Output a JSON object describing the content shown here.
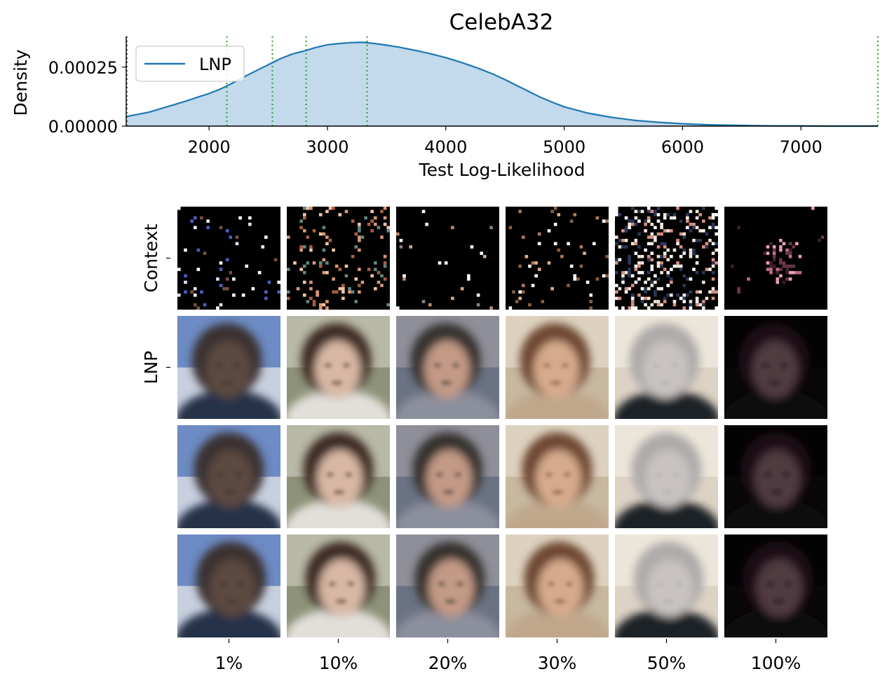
{
  "chart_data": [
    {
      "type": "area",
      "title": "CelebA32",
      "xlabel": "Test Log-Likelihood",
      "ylabel": "Density",
      "xlim": [
        1300,
        7650
      ],
      "ylim": [
        0,
        0.00038
      ],
      "xticks": [
        2000,
        3000,
        4000,
        5000,
        6000,
        7000
      ],
      "xtick_labels": [
        "2000",
        "3000",
        "4000",
        "5000",
        "6000",
        "7000"
      ],
      "yticks": [
        0,
        0.00025
      ],
      "ytick_labels": [
        "0.00000",
        "0.00025"
      ],
      "grid": false,
      "legend_position": "top-left",
      "series": [
        {
          "name": "LNP",
          "color": "#1f77b4",
          "fill_color": "#c3d9ec",
          "x": [
            1300,
            1400,
            1500,
            1600,
            1700,
            1800,
            1900,
            2000,
            2100,
            2200,
            2300,
            2400,
            2500,
            2600,
            2700,
            2800,
            2900,
            3000,
            3100,
            3200,
            3300,
            3400,
            3500,
            3600,
            3700,
            3800,
            3900,
            4000,
            4100,
            4200,
            4300,
            4400,
            4500,
            4600,
            4700,
            4800,
            4900,
            5000,
            5200,
            5400,
            5600,
            5800,
            6000,
            6200,
            6400,
            6600,
            6800,
            7000,
            7200,
            7400,
            7650
          ],
          "y": [
            4e-05,
            5e-05,
            6e-05,
            7.5e-05,
            9e-05,
            0.000105,
            0.000122,
            0.000138,
            0.000158,
            0.000183,
            0.00021,
            0.000235,
            0.00026,
            0.000285,
            0.000305,
            0.000318,
            0.000333,
            0.000345,
            0.00035,
            0.000354,
            0.000355,
            0.00035,
            0.000343,
            0.000335,
            0.000325,
            0.000315,
            0.000303,
            0.00029,
            0.000275,
            0.000258,
            0.00024,
            0.00022,
            0.000197,
            0.000172,
            0.000147,
            0.000122,
            0.000101,
            8.2e-05,
            5.5e-05,
            3.7e-05,
            2.4e-05,
            1.6e-05,
            1e-05,
            6e-06,
            4e-06,
            2e-06,
            1e-06,
            1e-06,
            0.0,
            0.0,
            0.0
          ]
        }
      ],
      "vlines": [
        {
          "x": 1305,
          "color": "#1a5c1a",
          "style": "dotted"
        },
        {
          "x": 2150,
          "color": "#2ca02c",
          "style": "dotted"
        },
        {
          "x": 2535,
          "color": "#2ca02c",
          "style": "dotted"
        },
        {
          "x": 2820,
          "color": "#2ca02c",
          "style": "dotted"
        },
        {
          "x": 3335,
          "color": "#2ca02c",
          "style": "dotted"
        },
        {
          "x": 7650,
          "color": "#2ca02c",
          "style": "dotted"
        }
      ]
    },
    {
      "type": "image_grid",
      "row_labels": [
        "Context",
        "LNP",
        "",
        ""
      ],
      "col_labels": [
        "1%",
        "10%",
        "20%",
        "30%",
        "50%",
        "100%"
      ],
      "context_densities": [
        0.04,
        0.13,
        0.02,
        0.05,
        0.3,
        0.03
      ],
      "face_palettes": [
        {
          "bg_top": "#6d8bc4",
          "bg_bot": "#c8d0e0",
          "skin": "#5b4a40",
          "hair": "#3a3032",
          "cloth": "#27304a"
        },
        {
          "bg_top": "#b8b9a6",
          "bg_bot": "#8d9278",
          "skin": "#d8b8a4",
          "hair": "#3d2a22",
          "cloth": "#e2dfda"
        },
        {
          "bg_top": "#8f8f99",
          "bg_bot": "#6b7283",
          "skin": "#c29a86",
          "hair": "#36302e",
          "cloth": "#8c8f9c"
        },
        {
          "bg_top": "#ddd2bf",
          "bg_bot": "#c8b8a0",
          "skin": "#d6ab8c",
          "hair": "#6e4632",
          "cloth": "#c0a78c"
        },
        {
          "bg_top": "#ece6da",
          "bg_bot": "#ddd3c5",
          "skin": "#c8c3c0",
          "hair": "#aeaaaa",
          "cloth": "#1f2026"
        },
        {
          "bg_top": "#040303",
          "bg_bot": "#0a0709",
          "skin": "#4f3a40",
          "hair": "#1b1114",
          "cloth": "#0a0a0c"
        }
      ],
      "context_accent_colors": [
        [
          "#4a5fc0",
          "#e0e0ff",
          "#7a5040",
          "#ffffff"
        ],
        [
          "#d89878",
          "#f2c4a6",
          "#608880",
          "#a86040"
        ],
        [
          "#c08868",
          "#888080",
          "#d6a888",
          "#ffffff"
        ],
        [
          "#e0b088",
          "#b07858",
          "#ffffff",
          "#8a6040"
        ],
        [
          "#f4eadb",
          "#d89080",
          "#2a3858",
          "#ffffff"
        ],
        [
          "#c26a8a",
          "#6a3848",
          "#e8a0b8",
          "#402028"
        ]
      ]
    }
  ]
}
